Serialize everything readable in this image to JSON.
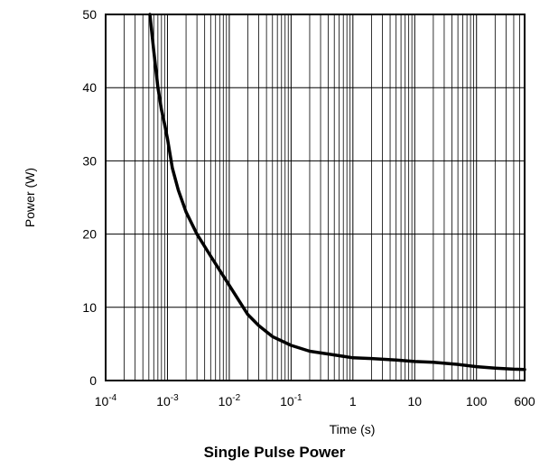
{
  "chart_data": {
    "type": "line",
    "title": "Single Pulse Power",
    "xlabel": "Time (s)",
    "ylabel": "Power (W)",
    "x_scale": "log",
    "xlim": [
      0.0001,
      600
    ],
    "ylim": [
      0,
      50
    ],
    "grid": true,
    "x_ticks": [
      {
        "value": 0.0001,
        "base": "10",
        "exp": "-4"
      },
      {
        "value": 0.001,
        "base": "10",
        "exp": "-3"
      },
      {
        "value": 0.01,
        "base": "10",
        "exp": "-2"
      },
      {
        "value": 0.1,
        "base": "10",
        "exp": "-1"
      },
      {
        "value": 1,
        "label": "1"
      },
      {
        "value": 10,
        "label": "10"
      },
      {
        "value": 100,
        "label": "100"
      },
      {
        "value": 600,
        "label": "600"
      }
    ],
    "y_ticks": [
      0,
      10,
      20,
      30,
      40,
      50
    ],
    "series": [
      {
        "color": "#000000",
        "points": [
          [
            0.00052,
            50
          ],
          [
            0.0006,
            45
          ],
          [
            0.0007,
            40
          ],
          [
            0.0008,
            37
          ],
          [
            0.0009,
            35
          ],
          [
            0.001,
            33
          ],
          [
            0.0012,
            29
          ],
          [
            0.0015,
            26
          ],
          [
            0.002,
            23
          ],
          [
            0.003,
            20
          ],
          [
            0.005,
            17
          ],
          [
            0.01,
            13
          ],
          [
            0.02,
            9
          ],
          [
            0.03,
            7.5
          ],
          [
            0.05,
            6
          ],
          [
            0.1,
            4.8
          ],
          [
            0.2,
            4
          ],
          [
            0.5,
            3.5
          ],
          [
            1,
            3.1
          ],
          [
            2,
            3
          ],
          [
            5,
            2.8
          ],
          [
            10,
            2.6
          ],
          [
            20,
            2.5
          ],
          [
            50,
            2.2
          ],
          [
            100,
            1.9
          ],
          [
            200,
            1.7
          ],
          [
            400,
            1.55
          ],
          [
            600,
            1.5
          ]
        ]
      }
    ]
  }
}
